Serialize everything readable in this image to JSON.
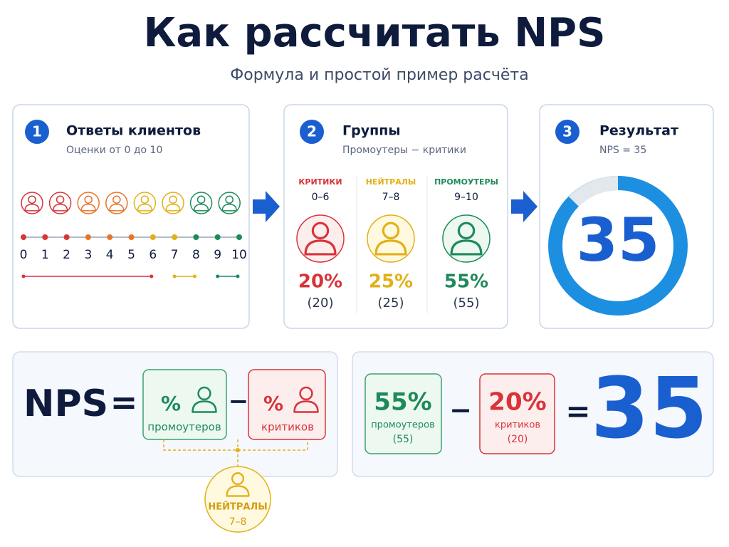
{
  "header": {
    "title": "Как рассчитать NPS",
    "subtitle": "Формула и простой пример расчёта"
  },
  "steps": [
    {
      "number": "1",
      "title": "Ответы клиентов",
      "subtitle": "Оценки от 0 до 10",
      "scale": [
        "0",
        "1",
        "2",
        "3",
        "4",
        "5",
        "6",
        "7",
        "8",
        "9",
        "10"
      ]
    },
    {
      "number": "2",
      "title": "Группы",
      "subtitle": "Промоутеры − критики",
      "groups": [
        {
          "name": "КРИТИКИ",
          "range": "0–6",
          "percent": "20%",
          "count": "(20)"
        },
        {
          "name": "НЕЙТРАЛЫ",
          "range": "7–8",
          "percent": "25%",
          "count": "(25)"
        },
        {
          "name": "ПРОМОУТЕРЫ",
          "range": "9–10",
          "percent": "55%",
          "count": "(55)"
        }
      ]
    },
    {
      "number": "3",
      "title": "Результат",
      "subtitle": "NPS = 35",
      "value": "35"
    }
  ],
  "formula": {
    "left": "NPS",
    "equals": "=",
    "minus": "−",
    "promoters": {
      "symbol": "%",
      "label": "промоутеров"
    },
    "detractors": {
      "symbol": "%",
      "label": "критиков"
    },
    "neutrals": {
      "label": "НЕЙТРАЛЫ",
      "range": "7–8"
    }
  },
  "example": {
    "promoters": {
      "percent": "55%",
      "label": "промоутеров",
      "count": "(55)"
    },
    "minus": "−",
    "detractors": {
      "percent": "20%",
      "label": "критиков",
      "count": "(20)"
    },
    "equals": "=",
    "result": "35"
  }
}
